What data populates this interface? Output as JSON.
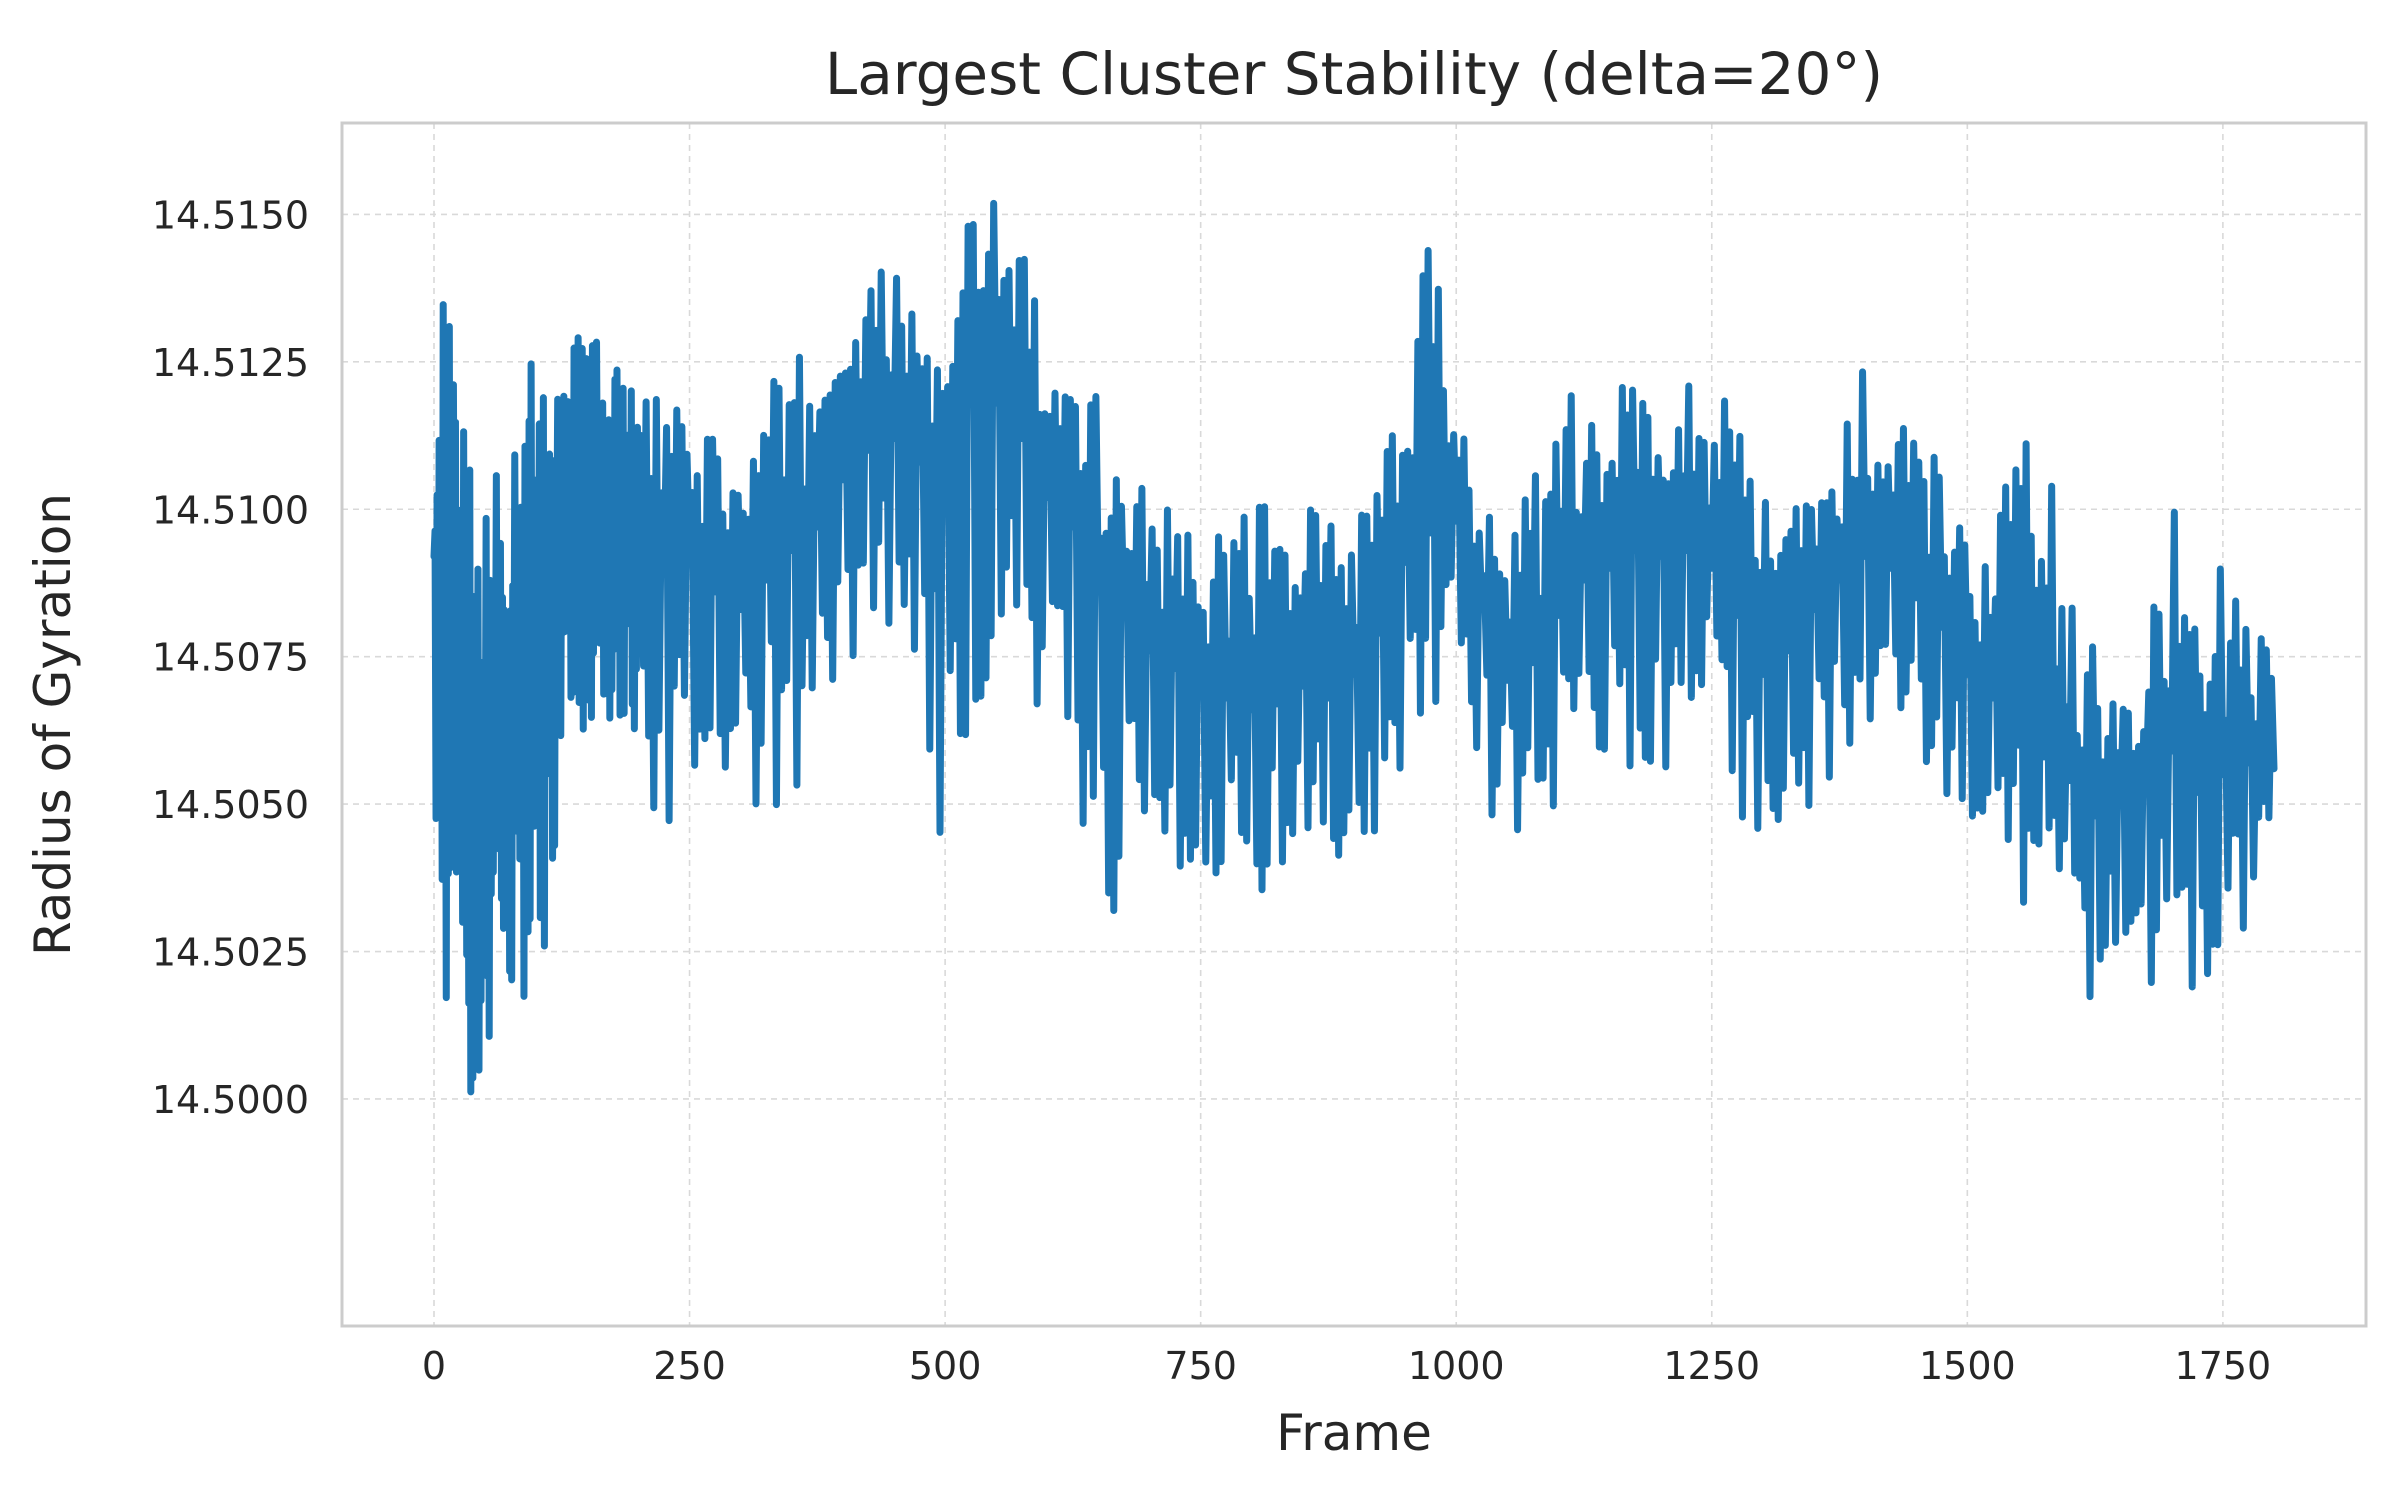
{
  "chart_data": {
    "type": "line",
    "title": "Largest Cluster Stability (delta=20°)",
    "xlabel": "Frame",
    "ylabel": "Radius of Gyration",
    "xlim": [
      -90,
      1890
    ],
    "ylim": [
      14.49615,
      14.51655
    ],
    "x_ticks": [
      0,
      250,
      500,
      750,
      1000,
      1250,
      1500,
      1750
    ],
    "x_tick_labels": [
      "0",
      "250",
      "500",
      "750",
      "1000",
      "1250",
      "1500",
      "1750"
    ],
    "y_ticks": [
      14.5,
      14.5025,
      14.505,
      14.5075,
      14.51,
      14.5125,
      14.515
    ],
    "y_tick_labels": [
      "14.5000",
      "14.5025",
      "14.5050",
      "14.5075",
      "14.5100",
      "14.5125",
      "14.5150"
    ],
    "grid": true,
    "legend": false,
    "colors": {
      "line": "#1f77b4",
      "grid": "#d9d9d9",
      "frame": "#cccccc",
      "text": "#262626"
    },
    "series": [
      {
        "x": [
          0,
          10,
          20,
          30,
          40,
          50,
          60,
          70,
          80,
          90,
          100,
          110,
          120,
          130,
          140,
          150,
          160,
          170,
          180,
          190,
          200,
          225,
          250,
          275,
          300,
          325,
          350,
          375,
          400,
          425,
          450,
          475,
          500,
          525,
          550,
          575,
          600,
          625,
          650,
          675,
          700,
          725,
          750,
          775,
          800,
          825,
          850,
          875,
          900,
          925,
          950,
          975,
          1000,
          1025,
          1050,
          1075,
          1100,
          1125,
          1150,
          1175,
          1200,
          1225,
          1250,
          1275,
          1300,
          1325,
          1350,
          1375,
          1400,
          1425,
          1450,
          1475,
          1500,
          1525,
          1550,
          1575,
          1600,
          1625,
          1650,
          1675,
          1700,
          1725,
          1750,
          1775,
          1800
        ],
        "values": [
          14.5092,
          14.5063,
          14.5078,
          14.5052,
          14.5041,
          14.5046,
          14.5062,
          14.5058,
          14.5074,
          14.5069,
          14.5081,
          14.5086,
          14.5091,
          14.5097,
          14.5101,
          14.5094,
          14.5098,
          14.5092,
          14.5096,
          14.5093,
          14.5097,
          14.5089,
          14.5092,
          14.5086,
          14.5083,
          14.5088,
          14.5093,
          14.5097,
          14.5105,
          14.511,
          14.5112,
          14.5108,
          14.5106,
          14.5121,
          14.5118,
          14.5112,
          14.5102,
          14.5097,
          14.5086,
          14.5082,
          14.5076,
          14.5073,
          14.507,
          14.5068,
          14.5066,
          14.5067,
          14.507,
          14.5068,
          14.5072,
          14.5079,
          14.5091,
          14.5096,
          14.5098,
          14.5083,
          14.5071,
          14.5074,
          14.5082,
          14.5088,
          14.509,
          14.5093,
          14.5092,
          14.5093,
          14.509,
          14.5082,
          14.5072,
          14.5076,
          14.5083,
          14.5088,
          14.5092,
          14.509,
          14.5085,
          14.508,
          14.5072,
          14.5068,
          14.506,
          14.5058,
          14.5054,
          14.5048,
          14.505,
          14.5054,
          14.5059,
          14.5052,
          14.5055,
          14.5057,
          14.5056
        ],
        "min": [
          14.5031,
          14.5018,
          14.5013,
          14.5008,
          14.4992,
          14.5007,
          14.5005,
          14.4997,
          14.5012,
          14.5015,
          14.5029,
          14.5022,
          14.5048,
          14.5062,
          14.5065,
          14.5058,
          14.5068,
          14.5059,
          14.5062,
          14.5055,
          14.5058,
          14.5037,
          14.505,
          14.5041,
          14.5049,
          14.5048,
          14.505,
          14.5062,
          14.5069,
          14.5076,
          14.5078,
          14.5074,
          14.5033,
          14.5058,
          14.5079,
          14.5072,
          14.5048,
          14.506,
          14.5019,
          14.5039,
          14.5043,
          14.5037,
          14.5032,
          14.5036,
          14.5038,
          14.5031,
          14.5036,
          14.5041,
          14.5034,
          14.5046,
          14.5058,
          14.5064,
          14.507,
          14.5055,
          14.5037,
          14.5042,
          14.5048,
          14.5056,
          14.5049,
          14.5058,
          14.5052,
          14.5062,
          14.5057,
          14.505,
          14.5038,
          14.5044,
          14.5049,
          14.5051,
          14.5061,
          14.5064,
          14.5058,
          14.5052,
          14.5046,
          14.5036,
          14.5031,
          14.5033,
          14.503,
          14.5013,
          14.5018,
          14.5016,
          14.5025,
          14.5016,
          14.5015,
          14.5023,
          14.5045
        ],
        "max": [
          14.5111,
          14.5139,
          14.513,
          14.5112,
          14.5103,
          14.5106,
          14.5114,
          14.5104,
          14.512,
          14.5117,
          14.5138,
          14.5124,
          14.5119,
          14.5121,
          14.5136,
          14.5127,
          14.5131,
          14.5117,
          14.5125,
          14.512,
          14.5122,
          14.5118,
          14.5116,
          14.5115,
          14.5108,
          14.5119,
          14.5129,
          14.5125,
          14.514,
          14.5139,
          14.5142,
          14.5138,
          14.512,
          14.5154,
          14.5156,
          14.5151,
          14.5125,
          14.5119,
          14.5121,
          14.5109,
          14.5107,
          14.5101,
          14.5095,
          14.5096,
          14.5112,
          14.5099,
          14.5102,
          14.5101,
          14.5098,
          14.5108,
          14.5118,
          14.515,
          14.512,
          14.5106,
          14.5102,
          14.5108,
          14.5112,
          14.5127,
          14.512,
          14.5125,
          14.5113,
          14.5125,
          14.5126,
          14.5113,
          14.5108,
          14.51,
          14.5104,
          14.5113,
          14.5125,
          14.5115,
          14.5113,
          14.5108,
          14.5096,
          14.5094,
          14.5118,
          14.5117,
          14.5084,
          14.508,
          14.5077,
          14.5078,
          14.5101,
          14.509,
          14.5091,
          14.5085,
          14.5076
        ]
      }
    ]
  }
}
